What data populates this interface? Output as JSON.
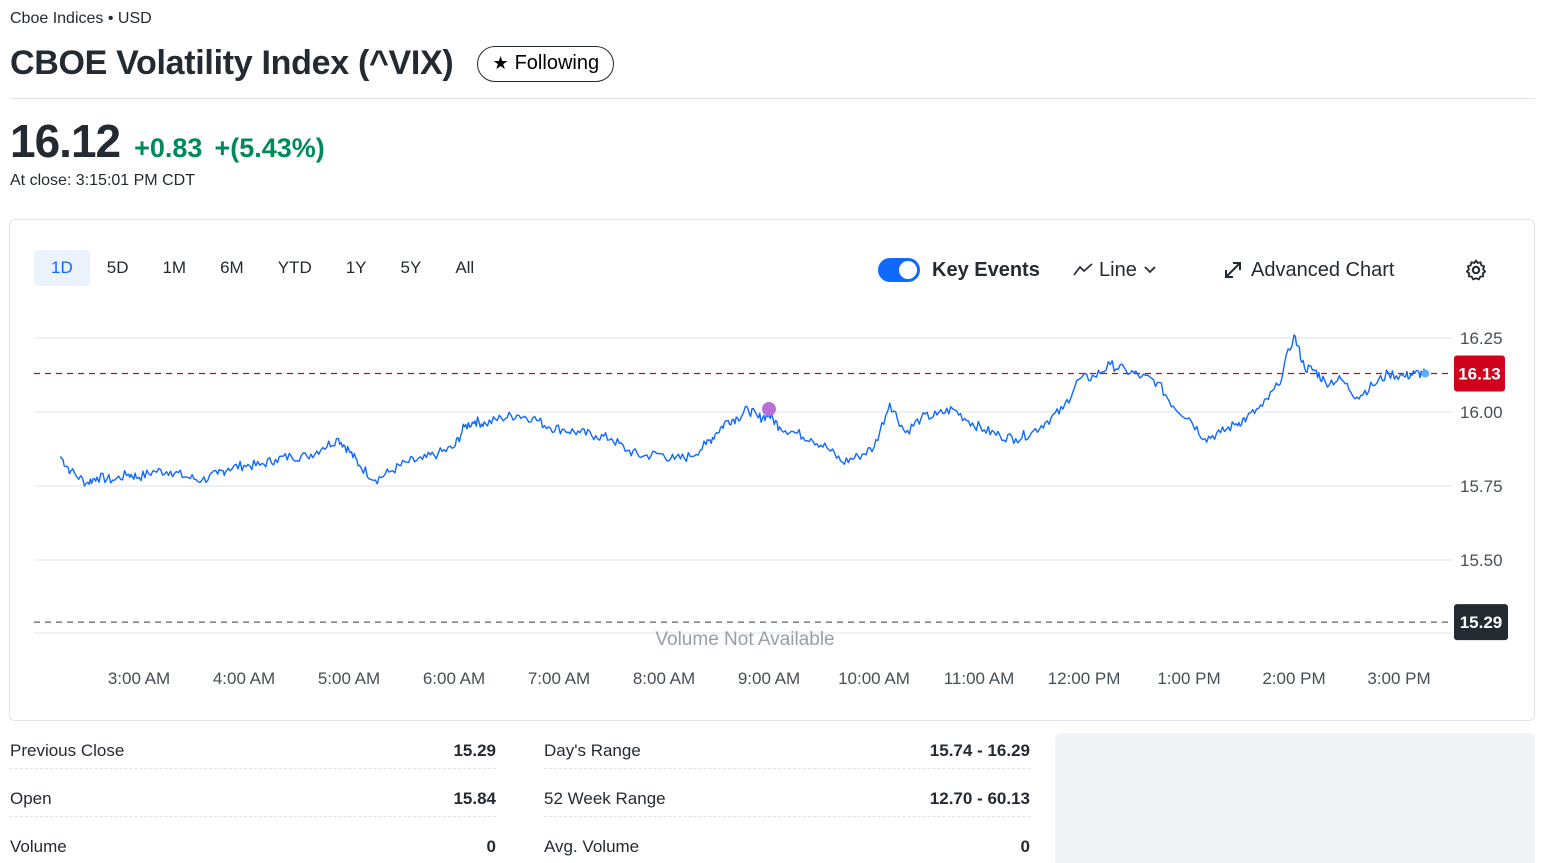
{
  "header": {
    "exchange": "Cboe Indices • USD",
    "title": "CBOE Volatility Index (^VIX)",
    "follow_label": "Following"
  },
  "quote": {
    "price": "16.12",
    "change": "+0.83",
    "change_pct": "+(5.43%)",
    "close_time": "At close: 3:15:01 PM CDT",
    "up_color": "#008a5a"
  },
  "chart_controls": {
    "ranges": [
      "1D",
      "5D",
      "1M",
      "6M",
      "YTD",
      "1Y",
      "5Y",
      "All"
    ],
    "active_range": "1D",
    "key_events_label": "Key Events",
    "key_events_on": true,
    "chart_type_label": "Line",
    "advanced_label": "Advanced Chart",
    "accent_color": "#0f69ff"
  },
  "chart_data": {
    "type": "line",
    "x_ticks": [
      "3:00 AM",
      "4:00 AM",
      "5:00 AM",
      "6:00 AM",
      "7:00 AM",
      "8:00 AM",
      "9:00 AM",
      "10:00 AM",
      "11:00 AM",
      "12:00 PM",
      "1:00 PM",
      "2:00 PM",
      "3:00 PM"
    ],
    "y_ticks": [
      "16.25",
      "16.00",
      "15.75",
      "15.50"
    ],
    "ylim": [
      15.25,
      16.33
    ],
    "current_price_label": "16.13",
    "current_price": 16.13,
    "previous_close_label": "15.29",
    "previous_close": 15.29,
    "volume_note": "Volume Not Available",
    "line_color": "#0f69ff",
    "current_badge_color": "#d0021b",
    "prev_badge_color": "#232a31",
    "key_event_color": "#b96fd8",
    "x_hours": [
      2.25,
      2.35,
      2.5,
      2.6,
      2.75,
      2.9,
      3.0,
      3.15,
      3.3,
      3.45,
      3.6,
      3.75,
      3.85,
      4.0,
      4.15,
      4.3,
      4.45,
      4.6,
      4.75,
      4.9,
      5.0,
      5.1,
      5.25,
      5.4,
      5.55,
      5.7,
      5.85,
      6.0,
      6.1,
      6.2,
      6.3,
      6.45,
      6.6,
      6.75,
      6.9,
      7.05,
      7.2,
      7.35,
      7.5,
      7.65,
      7.8,
      7.95,
      8.1,
      8.25,
      8.4,
      8.5,
      8.6,
      8.7,
      8.8,
      8.9,
      9.0,
      9.1,
      9.25,
      9.4,
      9.55,
      9.7,
      9.85,
      10.0,
      10.15,
      10.3,
      10.45,
      10.6,
      10.75,
      10.9,
      11.05,
      11.2,
      11.35,
      11.5,
      11.65,
      11.8,
      11.95,
      12.1,
      12.25,
      12.4,
      12.55,
      12.7,
      12.85,
      13.0,
      13.15,
      13.3,
      13.45,
      13.55,
      13.7,
      13.85,
      14.0,
      14.1,
      14.2,
      14.3,
      14.45,
      14.6,
      14.75,
      14.9,
      15.05,
      15.15,
      15.25
    ],
    "values": [
      15.85,
      15.8,
      15.76,
      15.78,
      15.77,
      15.79,
      15.78,
      15.8,
      15.8,
      15.78,
      15.77,
      15.79,
      15.81,
      15.82,
      15.82,
      15.84,
      15.85,
      15.85,
      15.88,
      15.91,
      15.87,
      15.82,
      15.77,
      15.8,
      15.83,
      15.84,
      15.86,
      15.88,
      15.95,
      15.97,
      15.96,
      15.98,
      15.99,
      15.98,
      15.95,
      15.94,
      15.93,
      15.92,
      15.91,
      15.87,
      15.85,
      15.86,
      15.84,
      15.85,
      15.89,
      15.93,
      15.97,
      15.98,
      16.01,
      15.98,
      15.99,
      15.95,
      15.93,
      15.91,
      15.88,
      15.83,
      15.85,
      15.88,
      16.03,
      15.93,
      15.98,
      15.99,
      16.01,
      15.97,
      15.94,
      15.92,
      15.91,
      15.93,
      15.97,
      16.01,
      16.11,
      16.12,
      16.16,
      16.14,
      16.12,
      16.1,
      16.02,
      15.98,
      15.91,
      15.93,
      15.96,
      15.98,
      16.02,
      16.09,
      16.26,
      16.15,
      16.14,
      16.1,
      16.11,
      16.05,
      16.09,
      16.13,
      16.12,
      16.13,
      16.13
    ],
    "key_event": {
      "x_hour": 9.0,
      "value": 16.01
    }
  },
  "stats_left": [
    {
      "label": "Previous Close",
      "value": "15.29"
    },
    {
      "label": "Open",
      "value": "15.84"
    },
    {
      "label": "Volume",
      "value": "0"
    }
  ],
  "stats_right": [
    {
      "label": "Day's Range",
      "value": "15.74 - 16.29"
    },
    {
      "label": "52 Week Range",
      "value": "12.70 - 60.13"
    },
    {
      "label": "Avg. Volume",
      "value": "0"
    }
  ]
}
